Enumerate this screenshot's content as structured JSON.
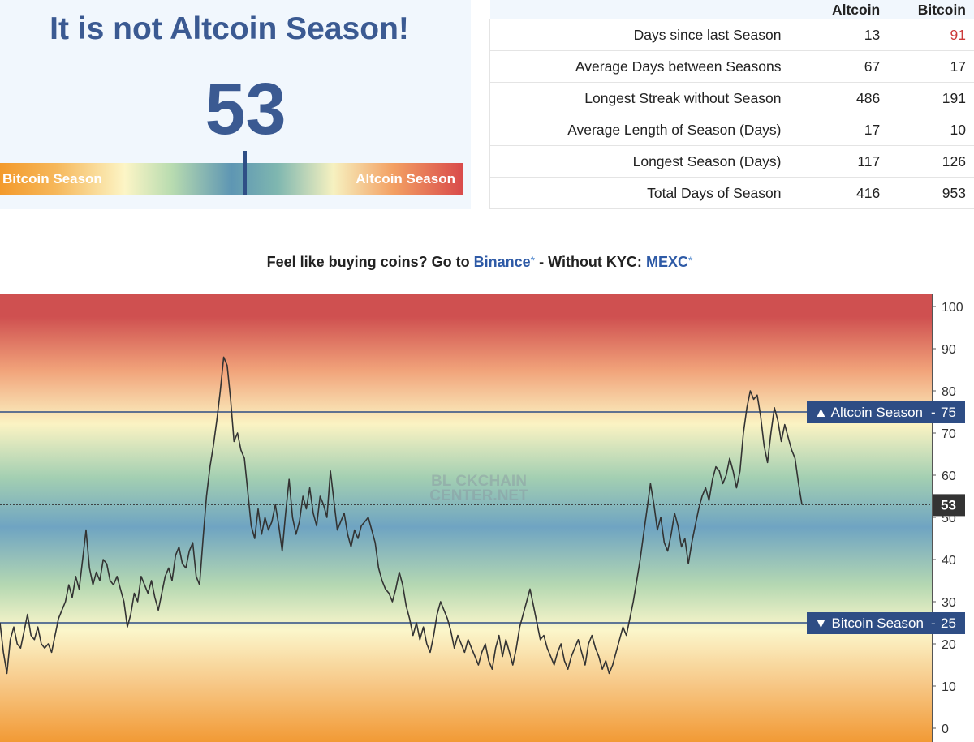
{
  "gauge": {
    "headline": "It is not Altcoin Season!",
    "index_value": "53",
    "bar_left_label": "Bitcoin Season",
    "bar_right_label": "Altcoin Season",
    "index_fraction": 0.53
  },
  "stats": {
    "columns": [
      "Altcoin",
      "Bitcoin"
    ],
    "rows": [
      {
        "label": "Days since last Season",
        "altcoin": "13",
        "bitcoin": "91"
      },
      {
        "label": "Average Days between Seasons",
        "altcoin": "67",
        "bitcoin": "17"
      },
      {
        "label": "Longest Streak without Season",
        "altcoin": "486",
        "bitcoin": "191"
      },
      {
        "label": "Average Length of Season (Days)",
        "altcoin": "17",
        "bitcoin": "10"
      },
      {
        "label": "Longest Season (Days)",
        "altcoin": "117",
        "bitcoin": "126"
      },
      {
        "label": "Total Days of Season",
        "altcoin": "416",
        "bitcoin": "953"
      }
    ],
    "highlight_color": "#cc3a3a"
  },
  "promo": {
    "prefix": "Feel like buying coins? Go to",
    "link1": "Binance",
    "star1": "*",
    "middle": "- Without KYC:",
    "link2": "MEXC",
    "star2": "*"
  },
  "chart_data": {
    "type": "line",
    "ylim": [
      0,
      100
    ],
    "y_ticks": [
      "0",
      "10",
      "20",
      "30",
      "40",
      "50",
      "60",
      "70",
      "80",
      "90",
      "100"
    ],
    "watermark": [
      "BL  CKCHAIN",
      "CENTER.NET"
    ],
    "thresholds": [
      {
        "label": "▲ Altcoin Season",
        "value": 75,
        "value_label": "75"
      },
      {
        "label": "▼ Bitcoin Season",
        "value": 25,
        "value_label": "25"
      }
    ],
    "current": {
      "value": 53,
      "value_label": "53"
    },
    "series": [
      {
        "values": [
          25,
          18,
          13,
          21,
          24,
          20,
          19,
          23,
          27,
          22,
          21,
          24,
          20,
          19,
          20,
          18,
          22,
          26,
          28,
          30,
          34,
          31,
          36,
          33,
          40,
          47,
          38,
          34,
          37,
          35,
          40,
          39,
          35,
          34,
          36,
          33,
          30,
          24,
          27,
          32,
          30,
          36,
          34,
          32,
          35,
          31,
          28,
          32,
          36,
          38,
          35,
          41,
          43,
          39,
          38,
          42,
          44,
          36,
          34,
          45,
          55,
          62,
          67,
          73,
          80,
          88,
          86,
          78,
          68,
          70,
          66,
          64,
          56,
          48,
          45,
          52,
          46,
          50,
          47,
          49,
          53,
          48,
          42,
          51,
          59,
          50,
          46,
          49,
          55,
          52,
          57,
          51,
          48,
          55,
          53,
          50,
          61,
          54,
          47,
          49,
          51,
          46,
          43,
          47,
          45,
          48,
          49,
          50,
          47,
          44,
          38,
          35,
          33,
          32,
          30,
          33,
          37,
          34,
          29,
          26,
          22,
          25,
          21,
          24,
          20,
          18,
          22,
          27,
          30,
          28,
          26,
          23,
          19,
          22,
          20,
          18,
          21,
          19,
          17,
          15,
          18,
          20,
          16,
          14,
          19,
          22,
          17,
          21,
          18,
          15,
          19,
          24,
          27,
          30,
          33,
          29,
          25,
          21,
          22,
          19,
          17,
          15,
          18,
          20,
          16,
          14,
          17,
          19,
          21,
          18,
          15,
          20,
          22,
          19,
          17,
          14,
          16,
          13,
          15,
          18,
          21,
          24,
          22,
          26,
          30,
          35,
          40,
          46,
          52,
          58,
          53,
          47,
          50,
          44,
          42,
          46,
          51,
          48,
          43,
          45,
          39,
          44,
          48,
          52,
          55,
          57,
          54,
          59,
          62,
          61,
          58,
          60,
          64,
          61,
          57,
          61,
          70,
          76,
          80,
          78,
          79,
          74,
          67,
          63,
          70,
          76,
          73,
          68,
          72,
          69,
          66,
          64,
          58,
          53
        ]
      }
    ]
  }
}
